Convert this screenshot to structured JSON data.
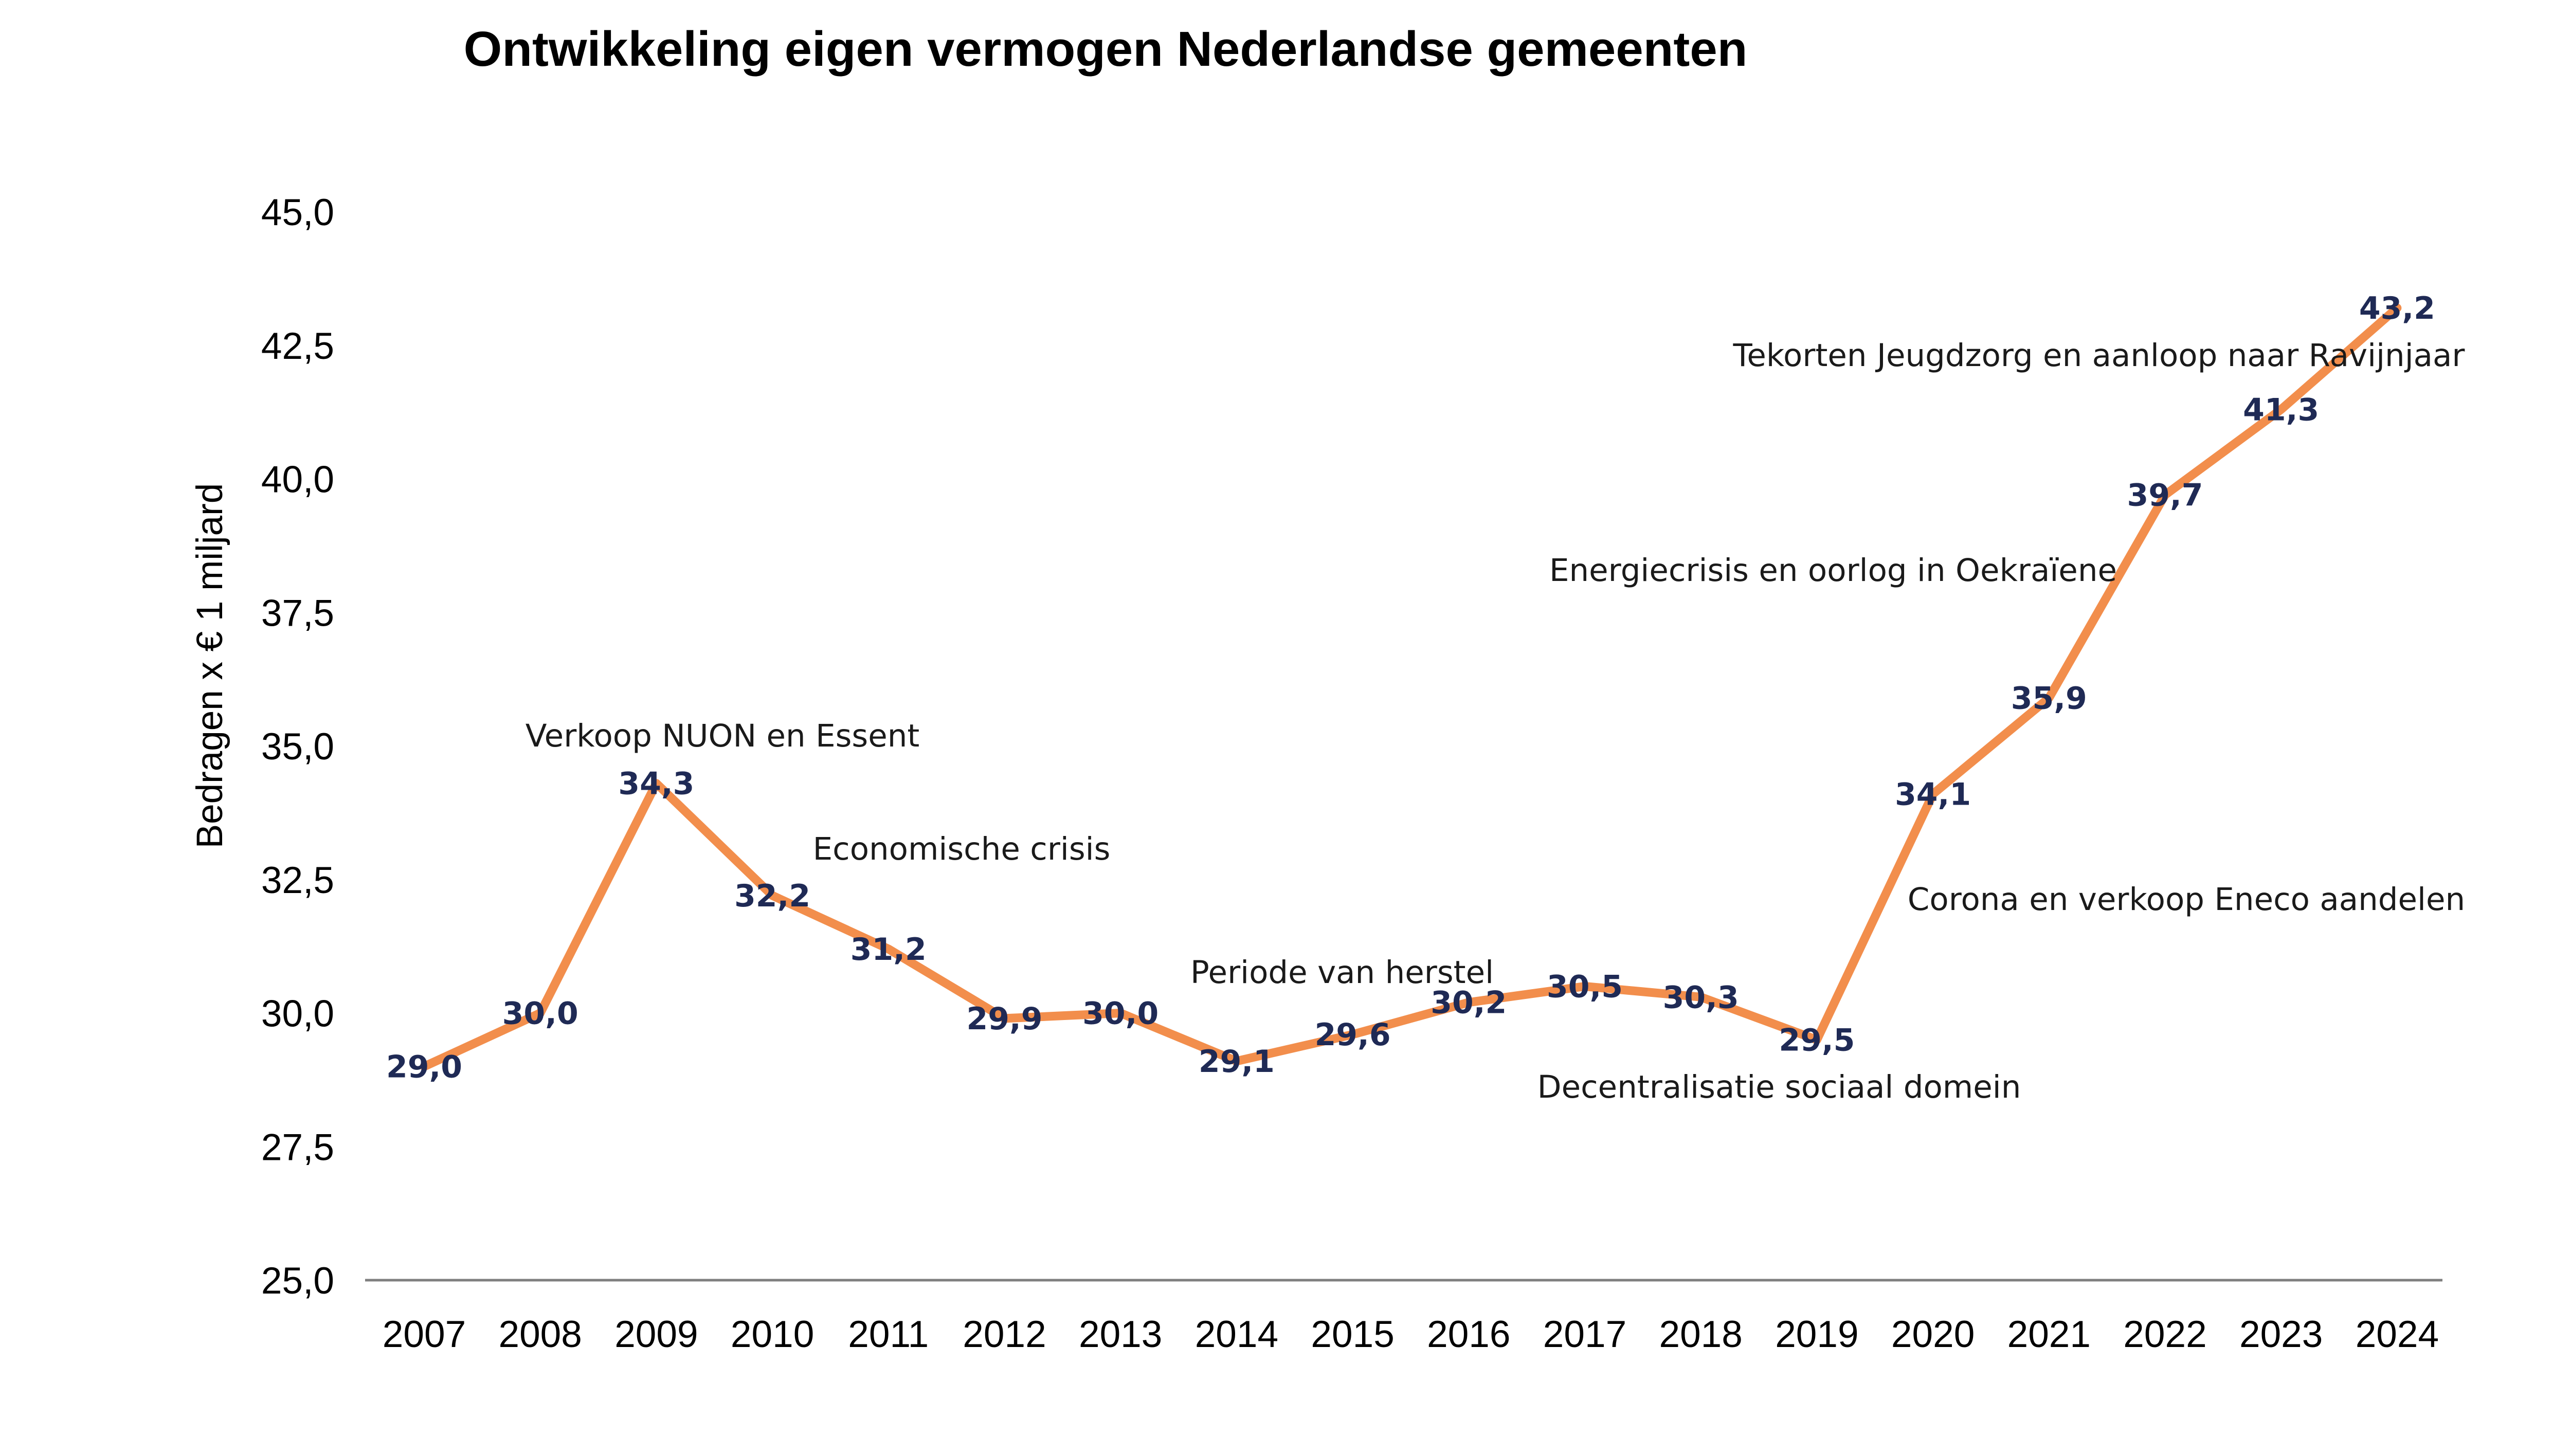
{
  "chart_data": {
    "type": "line",
    "title": "Ontwikkeling eigen vermogen Nederlandse gemeenten",
    "xlabel": "",
    "ylabel": "Bedragen x € 1 miljard",
    "ylim": [
      25.0,
      45.0
    ],
    "yticks": [
      "25,0",
      "27,5",
      "30,0",
      "32,5",
      "35,0",
      "37,5",
      "40,0",
      "42,5",
      "45,0"
    ],
    "ytick_values": [
      25.0,
      27.5,
      30.0,
      32.5,
      35.0,
      37.5,
      40.0,
      42.5,
      45.0
    ],
    "categories": [
      "2007",
      "2008",
      "2009",
      "2010",
      "2011",
      "2012",
      "2013",
      "2014",
      "2015",
      "2016",
      "2017",
      "2018",
      "2019",
      "2020",
      "2021",
      "2022",
      "2023",
      "2024"
    ],
    "series": [
      {
        "name": "Eigen vermogen",
        "color": "#f28e4c",
        "values": [
          29.0,
          30.0,
          34.3,
          32.2,
          31.2,
          29.9,
          30.0,
          29.1,
          29.6,
          30.2,
          30.5,
          30.3,
          29.5,
          34.1,
          35.9,
          39.7,
          41.3,
          43.2
        ],
        "labels": [
          "29,0",
          "30,0",
          "34,3",
          "32,2",
          "31,2",
          "29,9",
          "30,0",
          "29,1",
          "29,6",
          "30,2",
          "30,5",
          "30,3",
          "29,5",
          "34,1",
          "35,9",
          "39,7",
          "41,3",
          "43,2"
        ]
      }
    ],
    "annotations": [
      {
        "text": "Verkoop NUON en Essent",
        "year": "2009"
      },
      {
        "text": "Economische crisis",
        "year": "2011"
      },
      {
        "text": "Periode van herstel",
        "year": "2015"
      },
      {
        "text": "Decentralisatie sociaal domein",
        "year": "2018"
      },
      {
        "text": "Corona en verkoop Eneco aandelen",
        "year": "2021"
      },
      {
        "text": "Energiecrisis en oorlog in Oekraïene",
        "year": "2020"
      },
      {
        "text": "Tekorten Jeugdzorg en aanloop naar Ravijnjaar",
        "year": "2021"
      }
    ],
    "grid": false,
    "legend": "none"
  }
}
